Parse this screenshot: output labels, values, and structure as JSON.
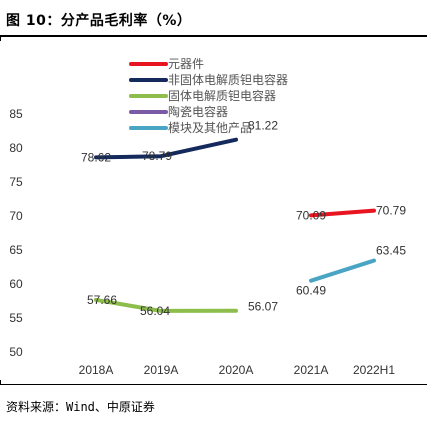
{
  "figure": {
    "title": "图 10：分产品毛利率（%）",
    "source": "资料来源：Wind、中原证券"
  },
  "chart_data": {
    "type": "line",
    "categories": [
      "2018A",
      "2019A",
      "2020A",
      "2021A",
      "2022H1"
    ],
    "ylim": [
      50,
      85
    ],
    "yticks": [
      50,
      55,
      60,
      65,
      70,
      75,
      80,
      85
    ],
    "grid": false,
    "legend_position": "top-left",
    "series": [
      {
        "name": "元器件",
        "color": "#e8141f",
        "values": [
          null,
          null,
          null,
          70.09,
          70.79
        ],
        "labels": [
          null,
          null,
          null,
          "70.09",
          "70.79"
        ]
      },
      {
        "name": "非固体电解质钽电容器",
        "color": "#142a5c",
        "values": [
          78.62,
          78.79,
          81.22,
          null,
          null
        ],
        "labels": [
          "78.62",
          "78.79",
          "81.22",
          null,
          null
        ]
      },
      {
        "name": "固体电解质钽电容器",
        "color": "#8dbd4a",
        "values": [
          57.66,
          56.04,
          56.07,
          null,
          null
        ],
        "labels": [
          "57.66",
          "56.04",
          "56.07",
          null,
          null
        ]
      },
      {
        "name": "陶瓷电容器",
        "color": "#7b5aa6",
        "values": [
          null,
          null,
          null,
          null,
          null
        ],
        "labels": [
          null,
          null,
          null,
          null,
          null
        ]
      },
      {
        "name": "模块及其他产品",
        "color": "#4aa5c5",
        "values": [
          null,
          null,
          null,
          60.49,
          63.45
        ],
        "labels": [
          null,
          null,
          null,
          "60.49",
          "63.45"
        ]
      }
    ]
  }
}
